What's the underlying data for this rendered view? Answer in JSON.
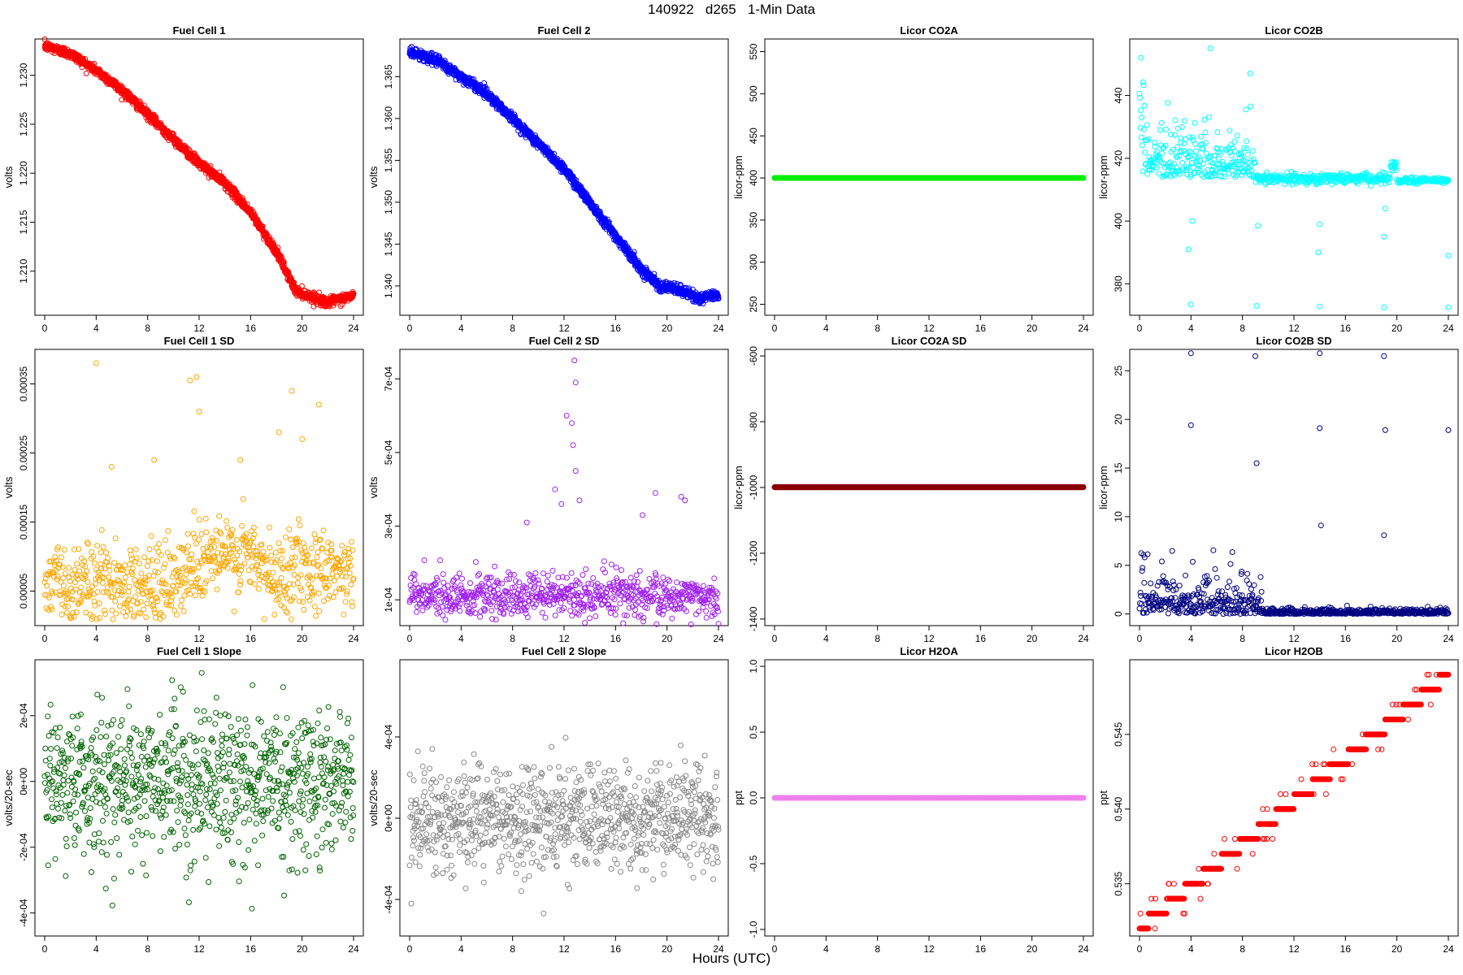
{
  "figure": {
    "title": "140922   d265   1-Min Data",
    "xlabel": "Hours (UTC)"
  },
  "chart_data": [
    {
      "id": "fc1",
      "type": "scatter",
      "title": "Fuel Cell 1",
      "ylabel": "volts",
      "color": "#ff0000",
      "xlim": [
        0,
        24
      ],
      "xticks": [
        0,
        4,
        8,
        12,
        16,
        20,
        24
      ],
      "ylim": [
        1.2055,
        1.2337
      ],
      "yticks": [
        1.21,
        1.215,
        1.22,
        1.225,
        1.23
      ],
      "yticklabels": [
        "1.210",
        "1.215",
        "1.220",
        "1.225",
        "1.230"
      ],
      "gen": {
        "kind": "curve",
        "knots": [
          [
            0,
            1.233
          ],
          [
            2,
            1.2322
          ],
          [
            4,
            1.2305
          ],
          [
            6,
            1.2285
          ],
          [
            8,
            1.226
          ],
          [
            10,
            1.2235
          ],
          [
            12,
            1.221
          ],
          [
            14,
            1.219
          ],
          [
            16,
            1.216
          ],
          [
            18,
            1.212
          ],
          [
            19.5,
            1.208
          ],
          [
            20.5,
            1.2075
          ],
          [
            22,
            1.2068
          ],
          [
            24,
            1.2075
          ]
        ],
        "noise": 0.0004,
        "count": 1440
      }
    },
    {
      "id": "fc2",
      "type": "scatter",
      "title": "Fuel Cell 2",
      "ylabel": "volts",
      "color": "#0000ff",
      "xlim": [
        0,
        24
      ],
      "xticks": [
        0,
        4,
        8,
        12,
        16,
        20,
        24
      ],
      "ylim": [
        1.3365,
        1.3695
      ],
      "yticks": [
        1.34,
        1.345,
        1.35,
        1.355,
        1.36,
        1.365
      ],
      "yticklabels": [
        "1.340",
        "1.345",
        "1.350",
        "1.355",
        "1.360",
        "1.365"
      ],
      "gen": {
        "kind": "curve",
        "knots": [
          [
            0,
            1.368
          ],
          [
            2,
            1.367
          ],
          [
            4,
            1.365
          ],
          [
            6,
            1.363
          ],
          [
            8,
            1.36
          ],
          [
            10,
            1.357
          ],
          [
            12,
            1.354
          ],
          [
            14,
            1.35
          ],
          [
            16,
            1.346
          ],
          [
            18,
            1.342
          ],
          [
            19.5,
            1.34
          ],
          [
            21,
            1.3395
          ],
          [
            22.5,
            1.3385
          ],
          [
            24,
            1.339
          ]
        ],
        "noise": 0.0005,
        "count": 1440
      }
    },
    {
      "id": "co2a",
      "type": "scatter",
      "title": "Licor CO2A",
      "ylabel": "licor-ppm",
      "color": "#00ee00",
      "xlim": [
        0,
        24
      ],
      "xticks": [
        0,
        4,
        8,
        12,
        16,
        20,
        24
      ],
      "ylim": [
        237,
        565
      ],
      "yticks": [
        250,
        300,
        350,
        400,
        450,
        500,
        550
      ],
      "yticklabels": [
        "250",
        "300",
        "350",
        "400",
        "450",
        "500",
        "550"
      ],
      "gen": {
        "kind": "flat",
        "value": 400,
        "noise": 0,
        "count": 1440
      }
    },
    {
      "id": "co2b",
      "type": "scatter",
      "title": "Licor CO2B",
      "ylabel": "licor-ppm",
      "color": "#00ffff",
      "xlim": [
        0,
        24
      ],
      "xticks": [
        0,
        4,
        8,
        12,
        16,
        20,
        24
      ],
      "ylim": [
        370,
        458
      ],
      "yticks": [
        380,
        400,
        420,
        440
      ],
      "yticklabels": [
        "380",
        "400",
        "420",
        "440"
      ],
      "gen": {
        "kind": "co2b",
        "count": 700
      }
    },
    {
      "id": "fc1sd",
      "type": "scatter",
      "title": "Fuel Cell 1 SD",
      "ylabel": "volts",
      "color": "#ffa500",
      "xlim": [
        0,
        24
      ],
      "xticks": [
        0,
        4,
        8,
        12,
        16,
        20,
        24
      ],
      "ylim": [
        0.0,
        0.0004
      ],
      "yticks": [
        5e-05,
        0.00015,
        0.00025,
        0.00035
      ],
      "yticklabels": [
        "0.00005",
        "0.00015",
        "0.00025",
        "0.00035"
      ],
      "gen": {
        "kind": "sd",
        "base": [
          [
            0,
            6e-05
          ],
          [
            10,
            6e-05
          ],
          [
            12,
            0.0001
          ],
          [
            16,
            0.0001
          ],
          [
            18,
            6e-05
          ],
          [
            19,
            9e-05
          ],
          [
            24,
            8e-05
          ]
        ],
        "spread": 3e-05,
        "outliers": [
          [
            4.0,
            0.00038
          ],
          [
            11.3,
            0.000355
          ],
          [
            11.8,
            0.00036
          ],
          [
            12,
            0.00031
          ],
          [
            15.2,
            0.00024
          ],
          [
            18.2,
            0.00028
          ],
          [
            19.2,
            0.00034
          ],
          [
            20,
            0.00027
          ],
          [
            21.3,
            0.00032
          ],
          [
            5.2,
            0.00023
          ],
          [
            8.5,
            0.00024
          ]
        ],
        "count": 720
      }
    },
    {
      "id": "fc2sd",
      "type": "scatter",
      "title": "Fuel Cell 2 SD",
      "ylabel": "volts",
      "color": "#a020f0",
      "xlim": [
        0,
        24
      ],
      "xticks": [
        0,
        4,
        8,
        12,
        16,
        20,
        24
      ],
      "ylim": [
        3e-05,
        0.00078
      ],
      "yticks": [
        0.0001,
        0.0003,
        0.0005,
        0.0007
      ],
      "yticklabels": [
        "1e-04",
        "3e-04",
        "5e-04",
        "7e-04"
      ],
      "gen": {
        "kind": "sd",
        "base": [
          [
            0,
            0.00011
          ],
          [
            24,
            0.00011
          ]
        ],
        "spread": 3e-05,
        "outliers": [
          [
            12.2,
            0.0006
          ],
          [
            12.6,
            0.00058
          ],
          [
            12.8,
            0.00075
          ],
          [
            12.9,
            0.00069
          ],
          [
            12.7,
            0.00052
          ],
          [
            12.9,
            0.00045
          ],
          [
            11.3,
            0.0004
          ],
          [
            11.8,
            0.00036
          ],
          [
            9.1,
            0.00031
          ],
          [
            19.1,
            0.00039
          ],
          [
            21.1,
            0.00038
          ],
          [
            21.4,
            0.00037
          ],
          [
            13.2,
            0.00037
          ],
          [
            18.1,
            0.00033
          ]
        ],
        "count": 720
      }
    },
    {
      "id": "co2asd",
      "type": "scatter",
      "title": "Licor CO2A SD",
      "ylabel": "licor-ppm",
      "color": "#8b0000",
      "xlim": [
        0,
        24
      ],
      "xticks": [
        0,
        4,
        8,
        12,
        16,
        20,
        24
      ],
      "ylim": [
        -1420,
        -580
      ],
      "yticks": [
        -1400,
        -1200,
        -1000,
        -800,
        -600
      ],
      "yticklabels": [
        "-1400",
        "-1200",
        "-1000",
        "-800",
        "-600"
      ],
      "gen": {
        "kind": "flat",
        "value": -999,
        "noise": 0,
        "count": 1440
      }
    },
    {
      "id": "co2bsd",
      "type": "scatter",
      "title": "Licor CO2B SD",
      "ylabel": "licor-ppm",
      "color": "#000080",
      "xlim": [
        0,
        24
      ],
      "xticks": [
        0,
        4,
        8,
        12,
        16,
        20,
        24
      ],
      "ylim": [
        -1.2,
        27.2
      ],
      "yticks": [
        0,
        5,
        10,
        15,
        20,
        25
      ],
      "yticklabels": [
        "0",
        "5",
        "10",
        "15",
        "20",
        "25"
      ],
      "gen": {
        "kind": "co2bsd",
        "count": 720,
        "outliers": [
          [
            4.0,
            26.8
          ],
          [
            4.0,
            19.4
          ],
          [
            9.0,
            26.5
          ],
          [
            9.1,
            15.5
          ],
          [
            14.0,
            26.8
          ],
          [
            14.0,
            19.1
          ],
          [
            14.1,
            9.1
          ],
          [
            19.0,
            26.5
          ],
          [
            19.1,
            18.9
          ],
          [
            19.0,
            8.1
          ],
          [
            24.0,
            18.9
          ]
        ]
      }
    },
    {
      "id": "fc1slope",
      "type": "scatter",
      "title": "Fuel Cell 1 Slope",
      "ylabel": "volts/20-sec",
      "color": "#006400",
      "xlim": [
        0,
        24
      ],
      "xticks": [
        0,
        4,
        8,
        12,
        16,
        20,
        24
      ],
      "ylim": [
        -0.00047,
        0.00037
      ],
      "yticks": [
        -0.0004,
        -0.0002,
        0,
        0.0002
      ],
      "yticklabels": [
        "-4e-04",
        "-2e-04",
        "0e+00",
        "2e-04"
      ],
      "gen": {
        "kind": "slope",
        "spread": 0.00011,
        "count": 900
      }
    },
    {
      "id": "fc2slope",
      "type": "scatter",
      "title": "Fuel Cell 2 Slope",
      "ylabel": "volts/20-sec",
      "color": "#888888",
      "xlim": [
        0,
        24
      ],
      "xticks": [
        0,
        4,
        8,
        12,
        16,
        20,
        24
      ],
      "ylim": [
        -0.00058,
        0.00078
      ],
      "yticks": [
        -0.0004,
        0,
        0.0004
      ],
      "yticklabels": [
        "-4e-04",
        "0e+00",
        "4e-04"
      ],
      "gen": {
        "kind": "slope",
        "spread": 0.00013,
        "count": 900
      }
    },
    {
      "id": "h2oa",
      "type": "scatter",
      "title": "Licor H2OA",
      "ylabel": "ppt",
      "color": "#ee82ee",
      "xlim": [
        0,
        24
      ],
      "xticks": [
        0,
        4,
        8,
        12,
        16,
        20,
        24
      ],
      "ylim": [
        -1.05,
        1.05
      ],
      "yticks": [
        -1.0,
        -0.5,
        0,
        0.5,
        1.0
      ],
      "yticklabels": [
        "-1.0",
        "-0.5",
        "0.0",
        "0.5",
        "1.0"
      ],
      "gen": {
        "kind": "flat",
        "value": 0,
        "noise": 0,
        "count": 1440
      }
    },
    {
      "id": "h2ob",
      "type": "scatter",
      "title": "Licor H2OB",
      "ylabel": "ppt",
      "color": "#ff0000",
      "xlim": [
        0,
        24
      ],
      "xticks": [
        0,
        4,
        8,
        12,
        16,
        20,
        24
      ],
      "ylim": [
        0.5315,
        0.55
      ],
      "yticks": [
        0.535,
        0.54,
        0.545
      ],
      "yticklabels": [
        "0.535",
        "0.540",
        "0.545"
      ],
      "gen": {
        "kind": "steps",
        "from": 0.532,
        "to": 0.549,
        "step": 0.001,
        "count": 700
      }
    }
  ]
}
